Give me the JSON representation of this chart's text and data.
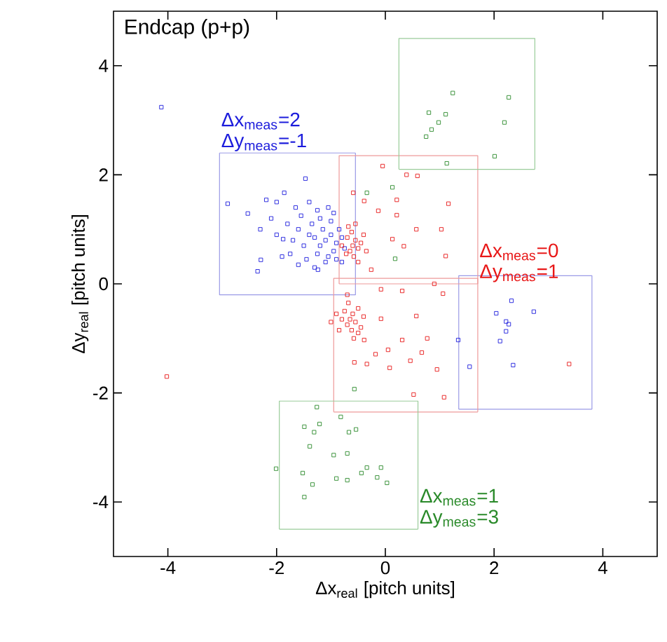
{
  "chart_data": {
    "type": "scatter",
    "title": "Endcap (p+p)",
    "xlabel": "Δx$_{real}$ [pitch units]",
    "ylabel": "Δy$_{real}$ [pitch units]",
    "xlim": [
      -5,
      5
    ],
    "ylim": [
      -5,
      5
    ],
    "xticks": [
      -4,
      -2,
      0,
      2,
      4
    ],
    "yticks": [
      -4,
      -2,
      0,
      2,
      4
    ],
    "marker": "square",
    "line_style": "solid",
    "series": [
      {
        "name": "Δx$_{meas}$=2 Δy$_{meas}$=-1",
        "color": "#1c1cdc",
        "x": [
          -4.12,
          -2.9,
          -2.53,
          -2.19,
          -1.47,
          -2.29,
          -2.35,
          -1.86,
          -1.88,
          -1.24,
          -1.1,
          -1.0,
          -1.2,
          -0.9,
          -1.3,
          -1.15,
          -0.95,
          -1.05,
          -1.25,
          -1.4,
          -1.5,
          -1.35,
          -1.2,
          -0.85,
          -0.8,
          -0.75,
          -1.0,
          -1.6,
          -1.45,
          -1.1,
          -0.9,
          -1.7,
          -1.55,
          -1.25,
          -0.95,
          -1.8,
          -1.75,
          -1.3,
          -1.65,
          -2.0,
          -2.1,
          -1.9,
          -0.8,
          -1.05,
          -1.4,
          -2.3,
          -2.0,
          -1.6,
          2.32,
          2.04,
          2.73,
          2.22,
          2.27,
          2.22,
          2.11,
          1.34,
          1.55,
          2.35
        ],
        "values": [
          3.24,
          1.47,
          1.29,
          1.54,
          1.93,
          0.44,
          0.23,
          1.67,
          0.82,
          0.26,
          0.8,
          0.9,
          0.7,
          0.75,
          0.85,
          1.0,
          0.6,
          0.5,
          0.55,
          0.9,
          0.7,
          1.1,
          1.2,
          1.0,
          0.85,
          0.65,
          1.15,
          1.0,
          0.45,
          0.4,
          0.45,
          0.8,
          1.25,
          1.35,
          1.3,
          1.1,
          0.55,
          0.3,
          1.4,
          0.9,
          1.2,
          0.5,
          0.4,
          1.4,
          1.5,
          1.0,
          1.5,
          0.35,
          -0.31,
          -0.54,
          -0.51,
          -0.69,
          -0.74,
          -0.87,
          -1.05,
          -1.03,
          -1.52,
          -1.49
        ]
      },
      {
        "type": "line",
        "marker": "none",
        "color": "#9a9ae6",
        "x": [
          -3.05,
          -0.55
        ],
        "values": [
          2.4,
          2.4
        ]
      },
      {
        "type": "line",
        "marker": "none",
        "color": "#9a9ae6",
        "x": [
          -3.05,
          -3.05,
          -0.55,
          -0.55
        ],
        "values": [
          2.4,
          -0.2,
          -0.2,
          2.4
        ]
      },
      {
        "type": "line",
        "marker": "none",
        "color": "#9a9ae6",
        "x": [
          1.35,
          1.35,
          3.8,
          3.8
        ],
        "values": [
          -2.3,
          0.15,
          0.15,
          -2.3
        ]
      },
      {
        "type": "line",
        "marker": "none",
        "color": "#9a9ae6",
        "x": [
          1.35,
          3.8
        ],
        "values": [
          -2.3,
          -2.3
        ]
      },
      {
        "name": "Δx$_{meas}$=0 Δy$_{meas}$=1",
        "color": "#e81818",
        "x": [
          -0.05,
          0.39,
          0.59,
          -0.59,
          -0.39,
          0.21,
          1.16,
          0.21,
          1.03,
          0.13,
          0.34,
          1.11,
          -0.26,
          0.57,
          0.9,
          -0.13,
          -0.6,
          -0.55,
          -0.65,
          -0.5,
          -0.7,
          -0.62,
          -0.45,
          -0.58,
          -0.72,
          -0.4,
          -0.68,
          -0.5,
          -0.35,
          -0.8,
          -0.55,
          -0.08,
          0.31,
          1.06,
          -0.08,
          0.57,
          -0.39,
          -0.18,
          0.05,
          0.77,
          0.31,
          0.67,
          0.46,
          -0.57,
          -0.34,
          0.08,
          0.95,
          0.52,
          1.08,
          3.38,
          -4.02,
          -0.65,
          -0.6,
          -0.7,
          -0.55,
          -0.75,
          -0.62,
          -0.5,
          -0.8,
          -0.68,
          -0.45,
          -0.9,
          -0.58,
          -0.4,
          -0.85,
          -0.7,
          -1.0,
          -0.5
        ],
        "values": [
          2.16,
          2.0,
          1.98,
          1.67,
          1.52,
          1.54,
          1.47,
          1.26,
          1.0,
          0.82,
          0.69,
          0.51,
          0.26,
          1.0,
          0.0,
          1.34,
          0.7,
          0.8,
          0.6,
          0.65,
          0.85,
          0.95,
          0.75,
          0.5,
          0.55,
          0.9,
          1.05,
          0.4,
          0.6,
          0.7,
          1.1,
          -0.1,
          -0.13,
          -0.18,
          -0.64,
          -0.59,
          -1.03,
          -1.29,
          -1.21,
          -1.0,
          -1.03,
          -1.26,
          -1.41,
          -1.44,
          -1.47,
          -1.54,
          -1.57,
          -2.03,
          -2.08,
          -1.47,
          -1.7,
          -0.65,
          -0.55,
          -0.75,
          -0.7,
          -0.5,
          -0.85,
          -0.45,
          -0.65,
          -0.35,
          -0.8,
          -0.55,
          -1.0,
          -0.6,
          -0.85,
          -0.2,
          -0.7,
          -0.9
        ]
      },
      {
        "type": "line",
        "marker": "none",
        "color": "#ee9a9a",
        "x": [
          1.7,
          -0.85
        ],
        "values": [
          0.0,
          0.0
        ]
      },
      {
        "type": "line",
        "marker": "none",
        "color": "#ee9a9a",
        "x": [
          -0.85,
          -0.85,
          1.7,
          1.7
        ],
        "values": [
          0.0,
          2.35,
          2.35,
          0.0
        ]
      },
      {
        "type": "line",
        "marker": "none",
        "color": "#ee9a9a",
        "x": [
          -0.95,
          -0.95,
          1.7,
          1.7
        ],
        "values": [
          -2.35,
          0.1,
          0.1,
          -2.35
        ]
      },
      {
        "type": "line",
        "marker": "none",
        "color": "#ee9a9a",
        "x": [
          -0.95,
          1.7
        ],
        "values": [
          -2.35,
          -2.35
        ]
      },
      {
        "name": "Δx$_{meas}$=1 Δy$_{meas}$=3",
        "color": "#2a8a2a",
        "x": [
          -0.57,
          -0.82,
          -1.26,
          -1.49,
          -1.31,
          -1.21,
          -0.67,
          -0.54,
          -1.39,
          -0.95,
          -0.7,
          -2.01,
          -1.52,
          -1.34,
          -0.9,
          -0.7,
          -0.44,
          -0.34,
          -0.15,
          -0.08,
          0.03,
          -1.49,
          1.24,
          2.27,
          0.8,
          1.11,
          0.98,
          0.85,
          0.75,
          2.19,
          2.01,
          1.13,
          -0.34,
          0.13,
          0.18
        ],
        "values": [
          -1.93,
          -2.44,
          -2.26,
          -2.62,
          -2.72,
          -2.57,
          -2.72,
          -2.67,
          -2.98,
          -3.14,
          -3.11,
          -3.39,
          -3.47,
          -3.68,
          -3.57,
          -3.6,
          -3.47,
          -3.37,
          -3.55,
          -3.37,
          -3.65,
          -3.91,
          3.5,
          3.42,
          3.14,
          3.11,
          2.96,
          2.83,
          2.7,
          2.96,
          2.34,
          2.21,
          1.67,
          1.77,
          0.46
        ]
      },
      {
        "type": "line",
        "marker": "none",
        "color": "#9acc9a",
        "x": [
          0.6,
          -1.95
        ],
        "values": [
          -4.5,
          -4.5
        ]
      },
      {
        "type": "line",
        "marker": "none",
        "color": "#9acc9a",
        "x": [
          -1.95,
          -1.95,
          0.6,
          0.6
        ],
        "values": [
          -4.5,
          -2.15,
          -2.15,
          -4.5
        ]
      },
      {
        "type": "line",
        "marker": "none",
        "color": "#9acc9a",
        "x": [
          0.25,
          0.25,
          2.75,
          2.75
        ],
        "values": [
          2.1,
          4.5,
          4.5,
          2.1
        ]
      },
      {
        "type": "line",
        "marker": "none",
        "color": "#9acc9a",
        "x": [
          0.25,
          2.75
        ],
        "values": [
          2.1,
          2.1
        ]
      }
    ]
  }
}
